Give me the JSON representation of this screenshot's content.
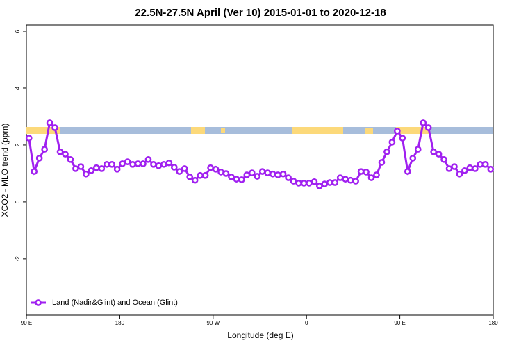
{
  "chart_data": {
    "type": "line",
    "title": "22.5N-27.5N April (Ver 10)   2015-01-01 to 2020-12-18",
    "x_label": "Longitude (deg E)",
    "y_label": "XCO2 - MLO trend (ppm)",
    "xlim": [
      90,
      540
    ],
    "xticks": [
      {
        "value": 90,
        "label": "90 E"
      },
      180,
      {
        "value": 270,
        "label": "90 W"
      },
      {
        "value": 360,
        "label": "0"
      },
      {
        "value": 450,
        "label": "90 E"
      },
      {
        "value": 540,
        "label": "180"
      }
    ],
    "ylim": [
      -3.98,
      6.22
    ],
    "yticks": [
      -2,
      0,
      2,
      4,
      6
    ],
    "legend_position": "bottomleft",
    "x": [
      92.5,
      97.5,
      102.5,
      107.5,
      112.5,
      117.5,
      122.5,
      127.5,
      132.5,
      137.5,
      142.5,
      147.5,
      152.5,
      157.5,
      162.5,
      167.5,
      172.5,
      177.5,
      182.5,
      187.5,
      192.5,
      197.5,
      202.5,
      207.5,
      212.5,
      217.5,
      222.5,
      227.5,
      232.5,
      237.5,
      242.5,
      247.5,
      252.5,
      257.5,
      262.5,
      267.5,
      272.5,
      277.5,
      282.5,
      287.5,
      292.5,
      297.5,
      302.5,
      307.5,
      312.5,
      317.5,
      322.5,
      327.5,
      332.5,
      337.5,
      342.5,
      347.5,
      352.5,
      357.5,
      362.5,
      367.5,
      372.5,
      377.5,
      382.5,
      387.5,
      392.5,
      397.5,
      402.5,
      407.5,
      412.5,
      417.5,
      422.5,
      427.5,
      432.5,
      437.5,
      442.5,
      447.5,
      452.5,
      457.5,
      462.5,
      467.5,
      472.5,
      477.5,
      482.5,
      487.5,
      492.5,
      497.5,
      502.5,
      507.5,
      512.5,
      517.5,
      522.5,
      527.5,
      532.5,
      537.5
    ],
    "series": [
      {
        "name": "Land (Nadir&Glint) and Ocean (Glint)",
        "color": "#a020f0",
        "values": [
          2.24,
          1.07,
          1.54,
          1.85,
          2.78,
          2.61,
          1.76,
          1.68,
          1.49,
          1.17,
          1.24,
          0.98,
          1.1,
          1.2,
          1.17,
          1.32,
          1.32,
          1.15,
          1.34,
          1.41,
          1.32,
          1.34,
          1.34,
          1.49,
          1.32,
          1.27,
          1.32,
          1.37,
          1.22,
          1.07,
          1.17,
          0.88,
          0.76,
          0.93,
          0.93,
          1.2,
          1.15,
          1.05,
          1.0,
          0.88,
          0.8,
          0.78,
          0.95,
          1.02,
          0.9,
          1.07,
          1.02,
          0.98,
          0.95,
          0.98,
          0.85,
          0.73,
          0.66,
          0.66,
          0.66,
          0.71,
          0.56,
          0.63,
          0.68,
          0.68,
          0.85,
          0.8,
          0.76,
          0.73,
          1.07,
          1.05,
          0.85,
          0.95,
          1.39,
          1.76,
          2.1,
          2.49,
          2.24,
          1.07,
          1.54,
          1.85,
          2.78,
          2.61,
          1.76,
          1.68,
          1.49,
          1.17,
          1.24,
          0.98,
          1.1,
          1.2,
          1.17,
          1.32,
          1.32,
          1.15
        ]
      }
    ]
  }
}
